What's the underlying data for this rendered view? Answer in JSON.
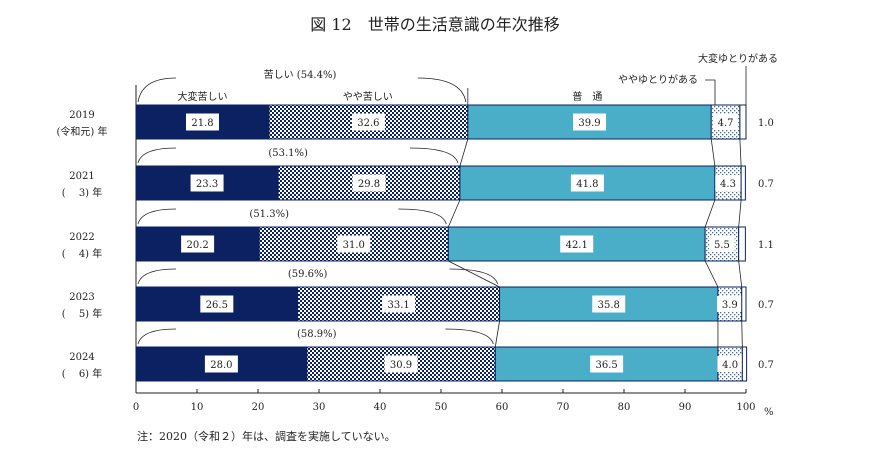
{
  "chart_data": {
    "type": "bar",
    "orientation": "horizontal-stacked-100",
    "title": "図 12　世帯の生活意識の年次推移",
    "categories": [
      [
        "2019",
        "(令和元) 年"
      ],
      [
        "2021",
        "(　 3) 年"
      ],
      [
        "2022",
        "(　 4) 年"
      ],
      [
        "2023",
        "(　 5) 年"
      ],
      [
        "2024",
        "(　 6) 年"
      ]
    ],
    "series": [
      {
        "name": "大変苦しい",
        "values": [
          21.8,
          23.3,
          20.2,
          26.5,
          28.0
        ],
        "color": "#0b2162",
        "pattern": "solid"
      },
      {
        "name": "やや苦しい",
        "values": [
          32.6,
          29.8,
          31.0,
          33.1,
          30.9
        ],
        "color": "#0b2162",
        "pattern": "checker"
      },
      {
        "name": "普　通",
        "values": [
          39.9,
          41.8,
          42.1,
          35.8,
          36.5
        ],
        "color": "#4aaec8",
        "pattern": "solid"
      },
      {
        "name": "ややゆとりがある",
        "values": [
          4.7,
          4.3,
          5.5,
          3.9,
          4.0
        ],
        "color": "#3a6aa8",
        "pattern": "dots"
      },
      {
        "name": "大変ゆとりがある",
        "values": [
          1.0,
          0.7,
          1.1,
          0.7,
          0.7
        ],
        "color": "#ffffff",
        "pattern": "solid"
      }
    ],
    "group_label": "苦しい",
    "group_totals": [
      "(54.4%)",
      "(53.1%)",
      "(51.3%)",
      "(59.6%)",
      "(58.9%)"
    ],
    "xlim": [
      0,
      100
    ],
    "xticks": [
      0,
      10,
      20,
      30,
      40,
      50,
      60,
      70,
      80,
      90,
      100
    ],
    "xunit": "%",
    "note": "注：2020（令和２）年は、調査を実施していない。"
  }
}
